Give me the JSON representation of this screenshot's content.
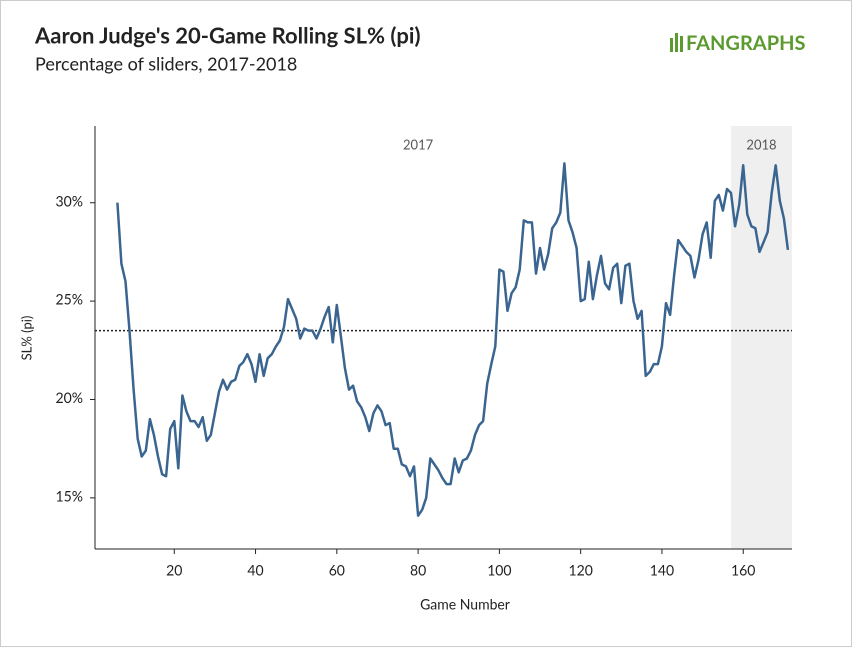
{
  "chart_data": {
    "type": "line",
    "title": "Aaron Judge's 20-Game Rolling SL% (pi)",
    "subtitle": "Percentage of sliders, 2017-2018",
    "brand": "FANGRAPHS",
    "x_label": "Game Number",
    "y_label": "SL% (pi)",
    "xlim": [
      0.5,
      172
    ],
    "xticks": [
      20,
      40,
      60,
      80,
      100,
      120,
      140,
      160
    ],
    "ylim": [
      12.4,
      33.9
    ],
    "yticks": [
      {
        "value": 15,
        "label": "15%"
      },
      {
        "value": 20,
        "label": "20%"
      },
      {
        "value": 25,
        "label": "25%"
      },
      {
        "value": 30,
        "label": "30%"
      }
    ],
    "reference_line": 23.5,
    "highlight_range": [
      157,
      172
    ],
    "annotations": [
      {
        "text": "2017",
        "x": 80
      },
      {
        "text": "2018",
        "x": 164.5
      }
    ],
    "series": [
      {
        "name": "SL% (pi)",
        "color": "#3b6591",
        "x": [
          6,
          7,
          8,
          9,
          10,
          11,
          12,
          13,
          14,
          15,
          16,
          17,
          18,
          19,
          20,
          21,
          22,
          23,
          24,
          25,
          26,
          27,
          28,
          29,
          30,
          31,
          32,
          33,
          34,
          35,
          36,
          37,
          38,
          39,
          40,
          41,
          42,
          43,
          44,
          45,
          46,
          47,
          48,
          49,
          50,
          51,
          52,
          53,
          54,
          55,
          56,
          57,
          58,
          59,
          60,
          61,
          62,
          63,
          64,
          65,
          66,
          67,
          68,
          69,
          70,
          71,
          72,
          73,
          74,
          75,
          76,
          77,
          78,
          79,
          80,
          81,
          82,
          83,
          84,
          85,
          86,
          87,
          88,
          89,
          90,
          91,
          92,
          93,
          94,
          95,
          96,
          97,
          98,
          99,
          100,
          101,
          102,
          103,
          104,
          105,
          106,
          107,
          108,
          109,
          110,
          111,
          112,
          113,
          114,
          115,
          116,
          117,
          118,
          119,
          120,
          121,
          122,
          123,
          124,
          125,
          126,
          127,
          128,
          129,
          130,
          131,
          132,
          133,
          134,
          135,
          136,
          137,
          138,
          139,
          140,
          141,
          142,
          143,
          144,
          145,
          146,
          147,
          148,
          149,
          150,
          151,
          152,
          153,
          154,
          155,
          156,
          157,
          158,
          159,
          160,
          161,
          162,
          163,
          164,
          165,
          166,
          167,
          168,
          169,
          170,
          171
        ],
        "values": [
          30.0,
          26.9,
          26.0,
          23.5,
          20.5,
          18.0,
          17.1,
          17.4,
          19.0,
          18.2,
          17.1,
          16.2,
          16.1,
          18.5,
          18.9,
          16.5,
          20.2,
          19.4,
          18.9,
          18.9,
          18.6,
          19.1,
          17.9,
          18.2,
          19.3,
          20.4,
          21.0,
          20.5,
          20.9,
          21.0,
          21.7,
          21.9,
          22.3,
          21.8,
          20.9,
          22.3,
          21.2,
          22.1,
          22.3,
          22.7,
          23.0,
          23.7,
          25.1,
          24.6,
          24.1,
          23.1,
          23.6,
          23.5,
          23.5,
          23.1,
          23.6,
          24.2,
          24.7,
          22.9,
          24.8,
          23.2,
          21.6,
          20.5,
          20.7,
          19.9,
          19.6,
          19.1,
          18.4,
          19.3,
          19.7,
          19.4,
          18.7,
          18.8,
          17.5,
          17.5,
          16.7,
          16.6,
          16.1,
          16.6,
          14.1,
          14.4,
          15.0,
          17.0,
          16.7,
          16.4,
          16.0,
          15.7,
          15.7,
          17.0,
          16.3,
          16.9,
          17.0,
          17.4,
          18.2,
          18.7,
          18.9,
          20.8,
          21.8,
          22.7,
          26.6,
          26.5,
          24.5,
          25.4,
          25.7,
          26.6,
          29.1,
          29.0,
          29.0,
          26.4,
          27.7,
          26.6,
          27.4,
          28.7,
          29.0,
          29.5,
          32.0,
          29.1,
          28.5,
          27.7,
          25.0,
          25.1,
          27.0,
          25.1,
          26.3,
          27.3,
          25.9,
          25.6,
          26.7,
          26.9,
          24.9,
          26.8,
          26.9,
          25.0,
          24.1,
          24.5,
          21.2,
          21.4,
          21.8,
          21.8,
          22.7,
          24.9,
          24.3,
          26.3,
          28.1,
          27.8,
          27.5,
          27.3,
          26.2,
          27.1,
          28.4,
          29.0,
          27.2,
          30.1,
          30.4,
          29.6,
          30.7,
          30.5,
          28.8,
          29.9,
          31.9,
          29.4,
          28.8,
          28.7,
          27.5,
          28.0,
          28.5,
          30.5,
          31.9,
          30.1,
          29.2,
          27.6
        ]
      }
    ]
  }
}
